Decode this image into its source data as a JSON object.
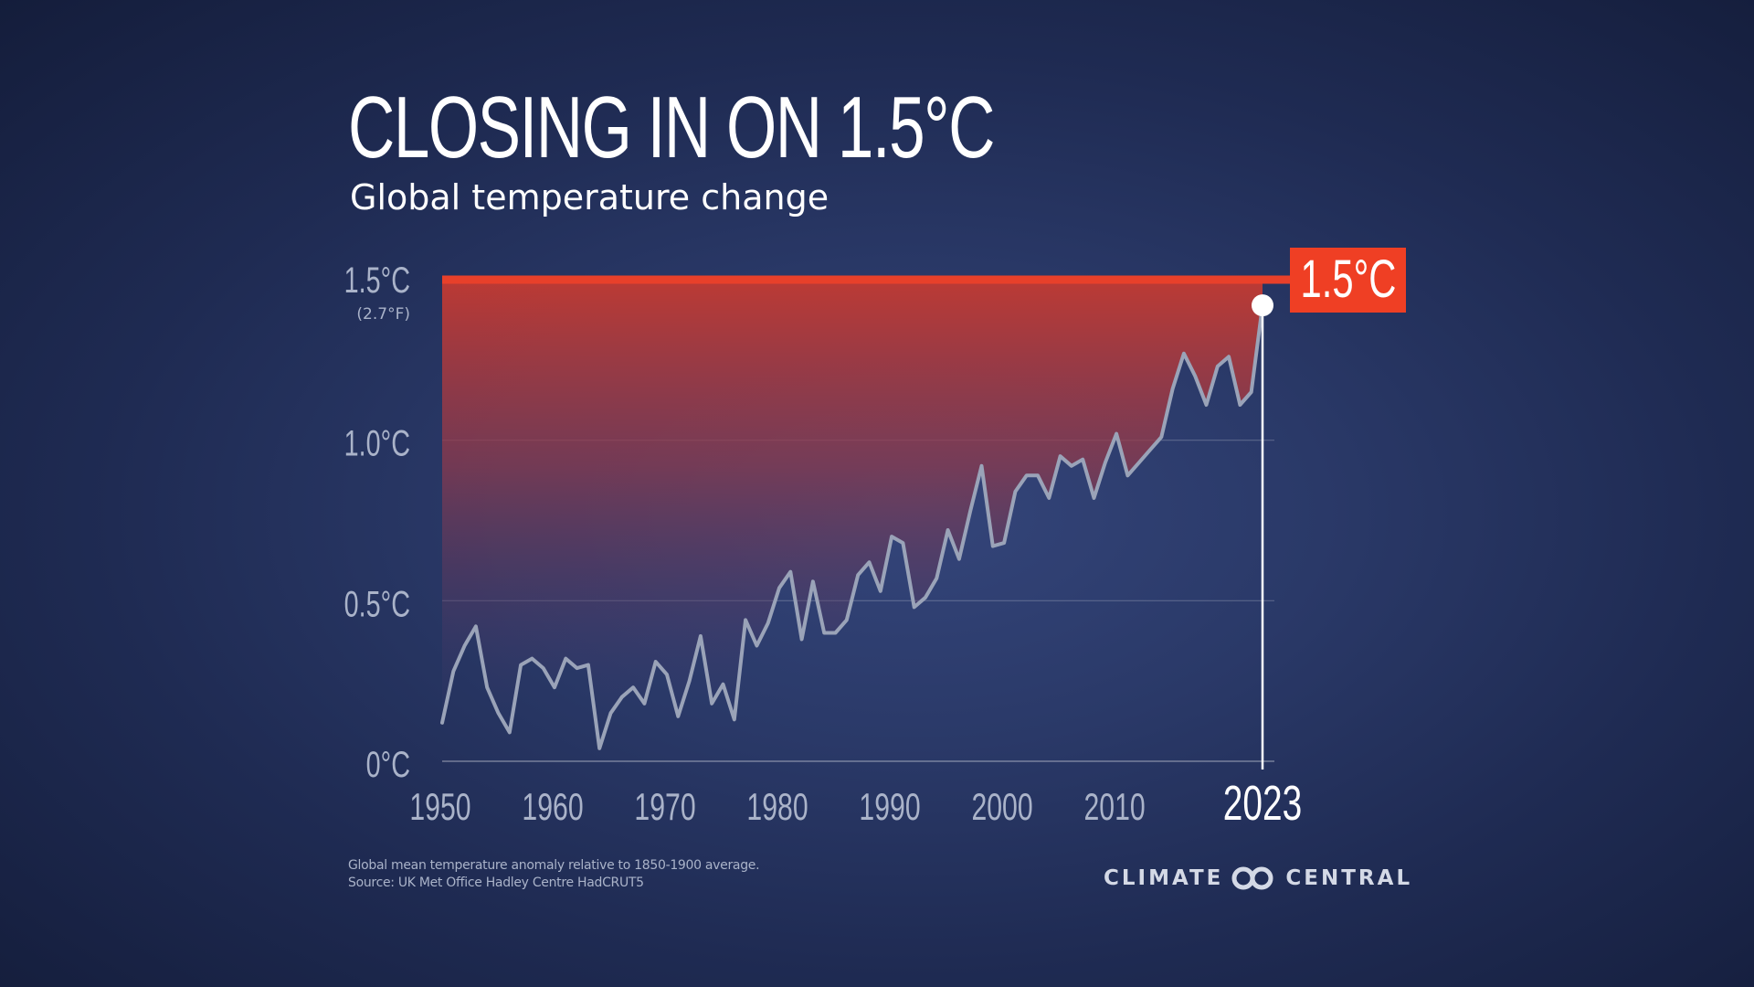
{
  "title": "CLOSING IN ON 1.5°C",
  "subtitle": "Global temperature change",
  "footnote": {
    "line1": "Global mean temperature anomaly relative to 1850-1900 average.",
    "line2": "Source: UK Met Office Hadley Centre HadCRUT5"
  },
  "brand": {
    "word1": "CLIMATE",
    "word2": "CENTRAL",
    "icon": "climate-central-logo-icon"
  },
  "colors": {
    "threshold": "#e8402a",
    "line": "#9aa3b8",
    "marker": "#ffffff",
    "label_box": "#ef3f24"
  },
  "chart_data": {
    "type": "line",
    "title": "CLOSING IN ON 1.5°C",
    "subtitle": "Global temperature change",
    "xlabel": "",
    "ylabel": "",
    "xlim": [
      1950,
      2023
    ],
    "ylim": [
      0,
      1.5
    ],
    "grid": true,
    "x_ticks": [
      1950,
      1960,
      1970,
      1980,
      1990,
      2000,
      2010
    ],
    "highlight_tick": "2023",
    "y_ticks": [
      {
        "value": 0,
        "label": "0°C"
      },
      {
        "value": 0.5,
        "label": "0.5°C"
      },
      {
        "value": 1.0,
        "label": "1.0°C"
      },
      {
        "value": 1.5,
        "label": "1.5°C",
        "sublabel": "(2.7°F)"
      }
    ],
    "threshold": {
      "value": 1.5,
      "label": "1.5°C"
    },
    "highlight_point": {
      "x": 2023,
      "y": 1.42
    },
    "x": [
      1950,
      1951,
      1952,
      1953,
      1954,
      1955,
      1956,
      1957,
      1958,
      1959,
      1960,
      1961,
      1962,
      1963,
      1964,
      1965,
      1966,
      1967,
      1968,
      1969,
      1970,
      1971,
      1972,
      1973,
      1974,
      1975,
      1976,
      1977,
      1978,
      1979,
      1980,
      1981,
      1982,
      1983,
      1984,
      1985,
      1986,
      1987,
      1988,
      1989,
      1990,
      1991,
      1992,
      1993,
      1994,
      1995,
      1996,
      1997,
      1998,
      1999,
      2000,
      2001,
      2002,
      2003,
      2004,
      2005,
      2006,
      2007,
      2008,
      2009,
      2010,
      2011,
      2012,
      2013,
      2014,
      2015,
      2016,
      2017,
      2018,
      2019,
      2020,
      2021,
      2022,
      2023
    ],
    "series": [
      {
        "name": "Global mean temperature anomaly",
        "values": [
          0.12,
          0.28,
          0.36,
          0.42,
          0.23,
          0.15,
          0.09,
          0.3,
          0.32,
          0.29,
          0.23,
          0.32,
          0.29,
          0.3,
          0.04,
          0.15,
          0.2,
          0.23,
          0.18,
          0.31,
          0.27,
          0.14,
          0.25,
          0.39,
          0.18,
          0.24,
          0.13,
          0.44,
          0.36,
          0.43,
          0.54,
          0.59,
          0.38,
          0.56,
          0.4,
          0.4,
          0.44,
          0.58,
          0.62,
          0.53,
          0.7,
          0.68,
          0.48,
          0.51,
          0.57,
          0.72,
          0.63,
          0.78,
          0.92,
          0.67,
          0.68,
          0.84,
          0.89,
          0.89,
          0.82,
          0.95,
          0.92,
          0.94,
          0.82,
          0.93,
          1.02,
          0.89,
          0.93,
          0.97,
          1.01,
          1.16,
          1.27,
          1.2,
          1.11,
          1.23,
          1.26,
          1.11,
          1.15,
          1.42
        ]
      }
    ]
  }
}
